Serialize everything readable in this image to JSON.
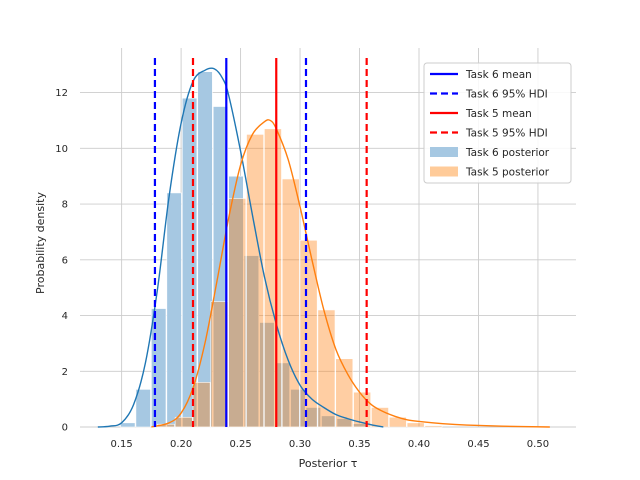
{
  "chart_data": {
    "type": "bar",
    "xlabel": "Posterior τ",
    "ylabel": "Probability density",
    "xlim": [
      0.115,
      0.532
    ],
    "ylim": [
      0,
      13.6
    ],
    "xticks": [
      "0.15",
      "0.20",
      "0.25",
      "0.30",
      "0.35",
      "0.40",
      "0.45",
      "0.50"
    ],
    "yticks": [
      "0",
      "2",
      "4",
      "6",
      "8",
      "10",
      "12"
    ],
    "grid": true,
    "legend_position": "top-right",
    "series": [
      {
        "name": "Task 6 posterior",
        "kind": "histogram",
        "color": "#a6c8e2",
        "bin_width": 0.0128,
        "bins": [
          [
            0.149,
            0.15
          ],
          [
            0.162,
            1.35
          ],
          [
            0.175,
            4.25
          ],
          [
            0.188,
            8.4
          ],
          [
            0.201,
            11.8
          ],
          [
            0.214,
            12.75
          ],
          [
            0.227,
            11.5
          ],
          [
            0.24,
            9.0
          ],
          [
            0.253,
            6.15
          ],
          [
            0.266,
            3.75
          ],
          [
            0.279,
            2.3
          ],
          [
            0.292,
            1.35
          ],
          [
            0.305,
            0.7
          ],
          [
            0.318,
            0.4
          ],
          [
            0.331,
            0.3
          ],
          [
            0.344,
            0.12
          ]
        ]
      },
      {
        "name": "Task 5 posterior",
        "kind": "histogram",
        "color": "#ffcb99",
        "bin_width": 0.0149,
        "bins": [
          [
            0.18,
            0.1
          ],
          [
            0.195,
            0.35
          ],
          [
            0.21,
            1.6
          ],
          [
            0.225,
            4.5
          ],
          [
            0.24,
            8.2
          ],
          [
            0.255,
            10.5
          ],
          [
            0.27,
            10.7
          ],
          [
            0.285,
            8.9
          ],
          [
            0.3,
            6.7
          ],
          [
            0.315,
            4.2
          ],
          [
            0.33,
            2.45
          ],
          [
            0.345,
            1.25
          ],
          [
            0.36,
            0.7
          ],
          [
            0.375,
            0.35
          ],
          [
            0.39,
            0.15
          ],
          [
            0.405,
            0.05
          ]
        ]
      },
      {
        "name": "Task 6 density",
        "kind": "kde",
        "color": "#1f77b4",
        "x": [
          0.13,
          0.14,
          0.15,
          0.16,
          0.17,
          0.18,
          0.19,
          0.2,
          0.21,
          0.22,
          0.228,
          0.235,
          0.24,
          0.25,
          0.26,
          0.27,
          0.28,
          0.29,
          0.3,
          0.31,
          0.32,
          0.33,
          0.34,
          0.35,
          0.36,
          0.37
        ],
        "y": [
          0.0,
          0.03,
          0.15,
          0.8,
          2.3,
          4.9,
          8.3,
          10.9,
          12.4,
          12.8,
          12.85,
          12.5,
          11.9,
          9.9,
          7.6,
          5.4,
          3.7,
          2.4,
          1.5,
          1.0,
          0.7,
          0.45,
          0.3,
          0.18,
          0.08,
          0.0
        ]
      },
      {
        "name": "Task 5 density",
        "kind": "kde",
        "color": "#ff7f0e",
        "x": [
          0.175,
          0.19,
          0.2,
          0.21,
          0.22,
          0.23,
          0.24,
          0.25,
          0.26,
          0.27,
          0.275,
          0.28,
          0.29,
          0.3,
          0.31,
          0.32,
          0.33,
          0.34,
          0.35,
          0.36,
          0.37,
          0.38,
          0.39,
          0.4,
          0.42,
          0.44,
          0.47,
          0.51
        ],
        "y": [
          0.0,
          0.15,
          0.5,
          1.4,
          3.0,
          5.2,
          7.5,
          9.4,
          10.5,
          10.95,
          11.0,
          10.7,
          9.6,
          7.9,
          6.0,
          4.2,
          2.8,
          1.9,
          1.25,
          0.8,
          0.55,
          0.38,
          0.26,
          0.2,
          0.12,
          0.07,
          0.03,
          0.0
        ]
      }
    ],
    "reference_lines": [
      {
        "label": "Task 6 mean",
        "x": 0.238,
        "color": "#0000ff",
        "style": "solid"
      },
      {
        "label": "Task 6 95% HDI",
        "x": [
          0.178,
          0.305
        ],
        "color": "#0000ff",
        "style": "dashed"
      },
      {
        "label": "Task 5 mean",
        "x": 0.28,
        "color": "#ff0000",
        "style": "solid"
      },
      {
        "label": "Task 5 95% HDI",
        "x": [
          0.21,
          0.356
        ],
        "color": "#ff0000",
        "style": "dashed"
      }
    ]
  },
  "legend": [
    {
      "label": "Task 6 mean",
      "kind": "line",
      "color": "#0000ff",
      "style": "solid"
    },
    {
      "label": "Task 6 95% HDI",
      "kind": "line",
      "color": "#0000ff",
      "style": "dashed"
    },
    {
      "label": "Task 5 mean",
      "kind": "line",
      "color": "#ff0000",
      "style": "solid"
    },
    {
      "label": "Task 5 95% HDI",
      "kind": "line",
      "color": "#ff0000",
      "style": "dashed"
    },
    {
      "label": "Task 6 posterior",
      "kind": "patch",
      "color": "#a6c8e2"
    },
    {
      "label": "Task 5 posterior",
      "kind": "patch",
      "color": "#ffcb99"
    }
  ]
}
